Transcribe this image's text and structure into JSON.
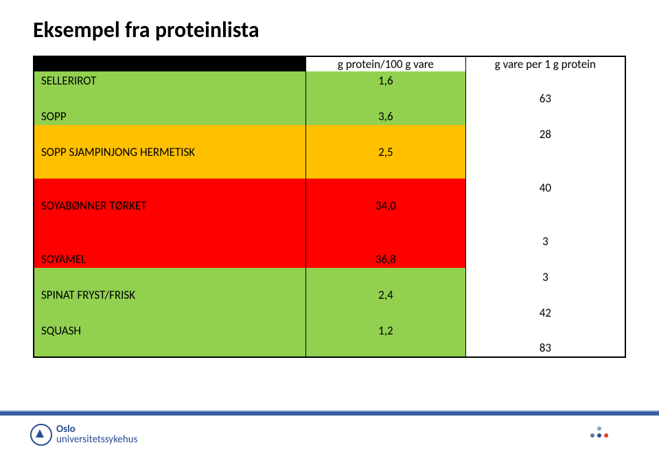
{
  "title": "Eksempel fra proteinlista",
  "columns": {
    "name": "",
    "val": "g protein/100 g vare",
    "per": "g vare per 1 g protein"
  },
  "colors": {
    "green": "#92d050",
    "yellow": "#ffc000",
    "red": "#ff0000",
    "white": "#ffffff",
    "header": "#000000"
  },
  "rows": [
    {
      "name": "",
      "value": "",
      "bg": "header",
      "gvalue": "",
      "gbg": "header",
      "isHeader": true
    },
    {
      "name": "SELLERIROT",
      "value": "1,6",
      "bg": "green",
      "gvalue": "",
      "gbg": "white"
    },
    {
      "name": "",
      "value": "",
      "bg": "green",
      "gvalue": "63",
      "gbg": "white"
    },
    {
      "name": "SOPP",
      "value": "3,6",
      "bg": "green",
      "gvalue": "",
      "gbg": "white"
    },
    {
      "name": "",
      "value": "",
      "bg": "yellow",
      "gvalue": "28",
      "gbg": "white"
    },
    {
      "name": "SOPP SJAMPINJONG HERMETISK",
      "value": "2,5",
      "bg": "yellow",
      "gvalue": "",
      "gbg": "white"
    },
    {
      "name": "",
      "value": "",
      "bg": "yellow",
      "gvalue": "",
      "gbg": "white"
    },
    {
      "name": "",
      "value": "",
      "bg": "red",
      "gvalue": "40",
      "gbg": "white"
    },
    {
      "name": "SOYABØNNER TØRKET",
      "value": "34,0",
      "bg": "red",
      "gvalue": "",
      "gbg": "white"
    },
    {
      "name": "",
      "value": "",
      "bg": "red",
      "gvalue": "",
      "gbg": "white"
    },
    {
      "name": "",
      "value": "",
      "bg": "red",
      "gvalue": "3",
      "gbg": "white"
    },
    {
      "name": "SOYAMEL",
      "value": "36,8",
      "bg": "red",
      "gvalue": "",
      "gbg": "white"
    },
    {
      "name": "",
      "value": "",
      "bg": "green",
      "gvalue": "3",
      "gbg": "white"
    },
    {
      "name": "SPINAT FRYST/FRISK",
      "value": "2,4",
      "bg": "green",
      "gvalue": "",
      "gbg": "white"
    },
    {
      "name": "",
      "value": "",
      "bg": "green",
      "gvalue": "42",
      "gbg": "white"
    },
    {
      "name": "SQUASH",
      "value": "1,2",
      "bg": "green",
      "gvalue": "",
      "gbg": "white"
    },
    {
      "name": "",
      "value": "",
      "bg": "green",
      "gvalue": "83",
      "gbg": "white"
    }
  ],
  "footer": {
    "logo_line1": "Oslo",
    "logo_line2": "universitetssykehus"
  }
}
